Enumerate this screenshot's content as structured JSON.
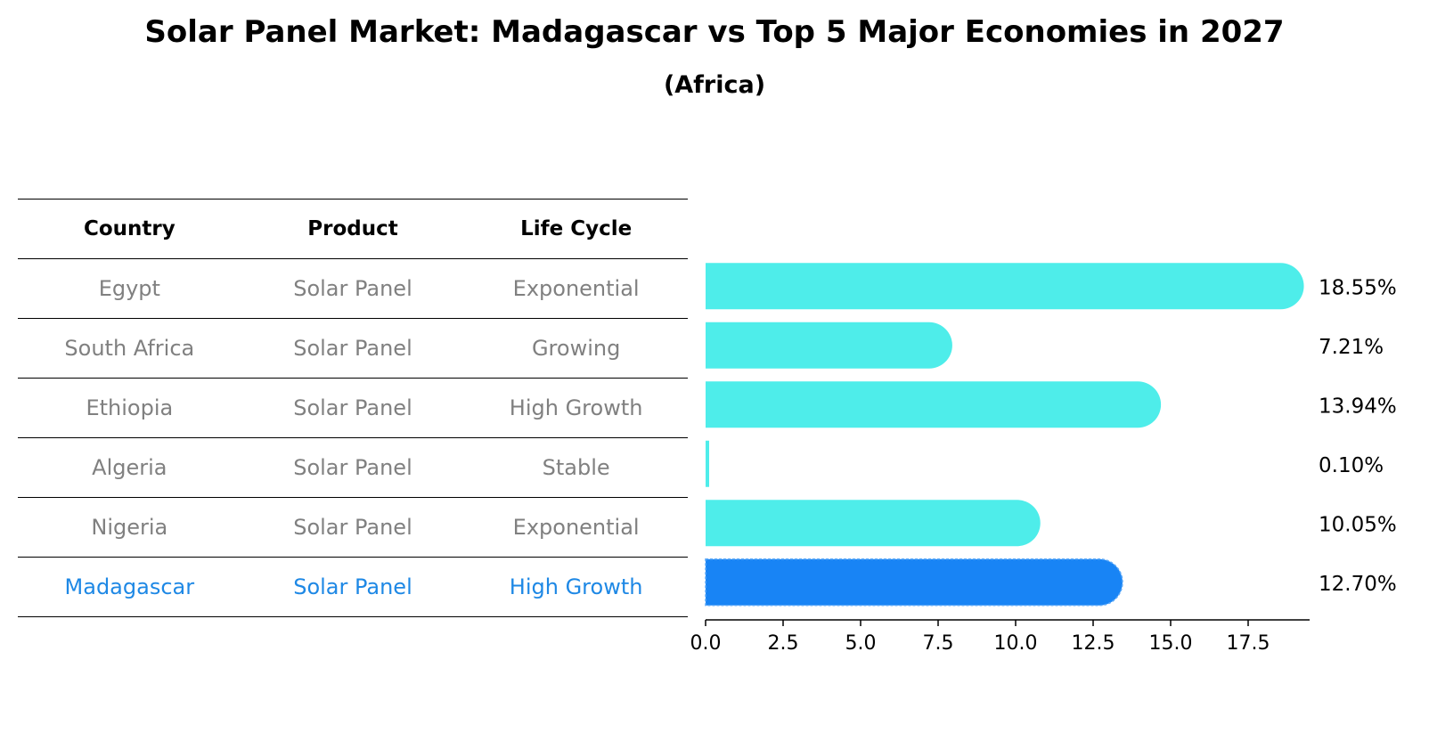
{
  "title": "Solar Panel Market: Madagascar vs Top 5 Major Economies in 2027",
  "subtitle": "(Africa)",
  "table": {
    "headers": [
      "Country",
      "Product",
      "Life Cycle"
    ],
    "rows": [
      [
        "Egypt",
        "Solar Panel",
        "Exponential"
      ],
      [
        "South Africa",
        "Solar Panel",
        "Growing"
      ],
      [
        "Ethiopia",
        "Solar Panel",
        "High Growth"
      ],
      [
        "Algeria",
        "Solar Panel",
        "Stable"
      ],
      [
        "Nigeria",
        "Solar Panel",
        "Exponential"
      ],
      [
        "Madagascar",
        "Solar Panel",
        "High Growth"
      ]
    ],
    "highlight_row": 5
  },
  "colors": {
    "bar": "#4eedea",
    "highlight_bar": "#1884f5",
    "muted_text": "#808080",
    "highlight_text": "#1e88e5"
  },
  "chart_data": {
    "type": "bar",
    "orientation": "horizontal",
    "title": "Solar Panel Market: Madagascar vs Top 5 Major Economies in 2027",
    "subtitle": "(Africa)",
    "categories": [
      "Egypt",
      "South Africa",
      "Ethiopia",
      "Algeria",
      "Nigeria",
      "Madagascar"
    ],
    "values": [
      18.55,
      7.21,
      13.94,
      0.1,
      10.05,
      12.7
    ],
    "labels": [
      "18.55%",
      "7.21%",
      "13.94%",
      "0.10%",
      "10.05%",
      "12.70%"
    ],
    "highlight": "Madagascar",
    "xlim": [
      0,
      19.5
    ],
    "xticks": [
      0.0,
      2.5,
      5.0,
      7.5,
      10.0,
      12.5,
      15.0,
      17.5
    ],
    "xtick_labels": [
      "0.0",
      "2.5",
      "5.0",
      "7.5",
      "10.0",
      "12.5",
      "15.0",
      "17.5"
    ],
    "xlabel": "",
    "ylabel": "",
    "grid": false
  }
}
